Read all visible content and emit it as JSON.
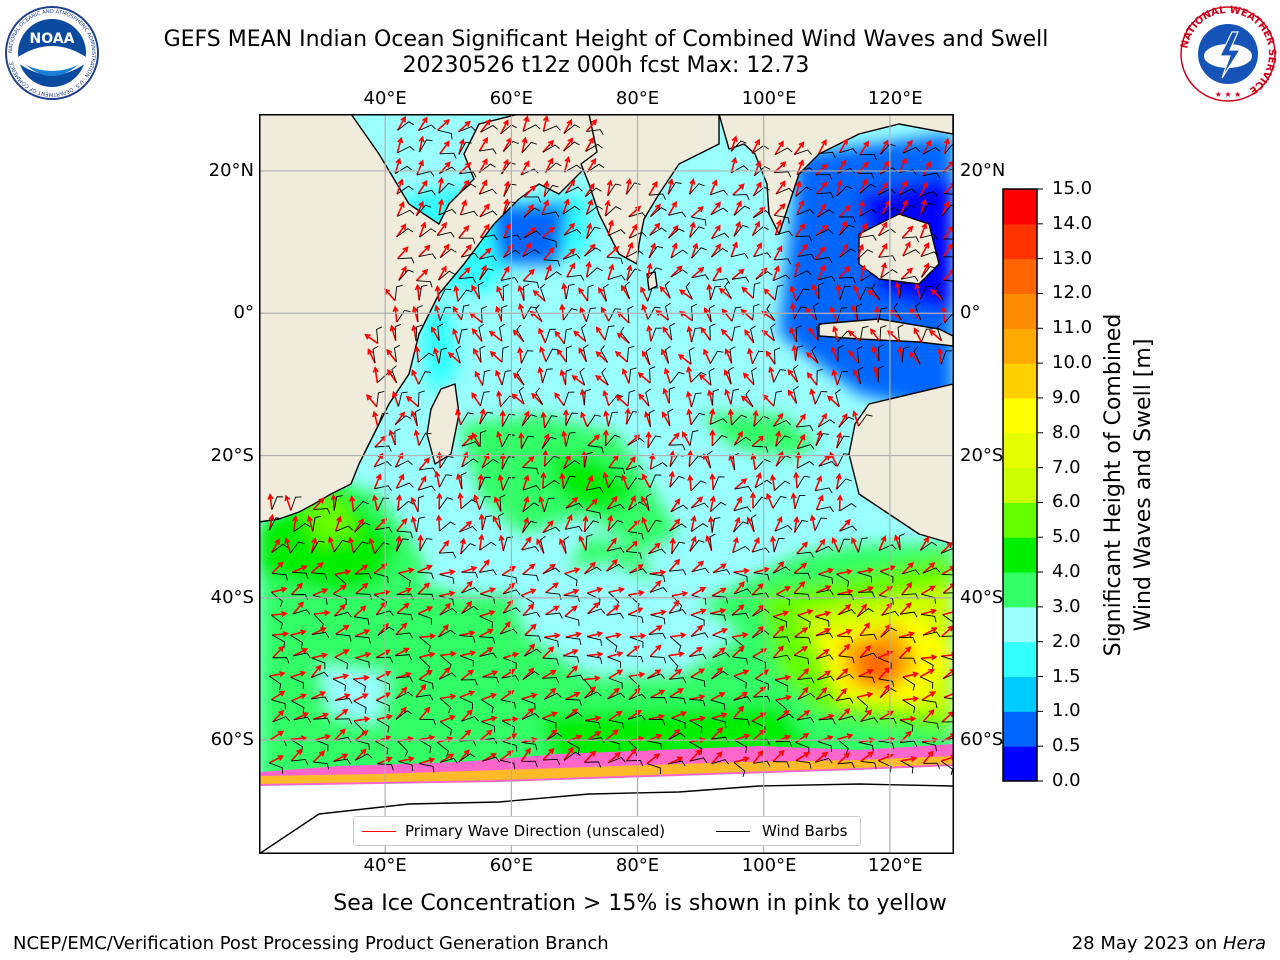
{
  "header": {
    "title_line1": "GEFS MEAN Indian Ocean Significant Height of Combined Wind Waves and Swell",
    "title_line2": "20230526 t12z 000h fcst   Max: 12.73"
  },
  "logos": {
    "left": "NOAA",
    "left_ring_text": "NATIONAL OCEANIC AND ATMOSPHERIC ADMINISTRATION · U.S. DEPARTMENT OF COMMERCE",
    "right_ring_text": "NATIONAL WEATHER SERVICE"
  },
  "map": {
    "lon_ticks": [
      "40°E",
      "60°E",
      "80°E",
      "100°E",
      "120°E"
    ],
    "lat_ticks": [
      "20°N",
      "0°",
      "20°S",
      "40°S",
      "60°S"
    ],
    "extent": {
      "lon_min": 20,
      "lon_max": 130,
      "lat_min": -76,
      "lat_max": 28
    },
    "colors": {
      "land": "#efecdb",
      "sea_ice_white": "#ffffff",
      "grid": "#b0b0b0",
      "arrows": "#ff0000",
      "barbs": "#000000"
    }
  },
  "colorbar": {
    "label_line1": "Significant Height of Combined",
    "label_line2": "Wind Waves and Swell [m]",
    "ticks": [
      "15.0",
      "14.0",
      "13.0",
      "12.0",
      "11.0",
      "10.0",
      "9.0",
      "8.0",
      "7.0",
      "6.0",
      "5.0",
      "4.0",
      "3.0",
      "2.0",
      "1.5",
      "1.0",
      "0.5",
      "0.0"
    ],
    "colors_bottom_to_top": [
      "#0000ff",
      "#0066ff",
      "#00ccff",
      "#33ffff",
      "#99ffff",
      "#33ff66",
      "#00ee00",
      "#66ff00",
      "#ccff00",
      "#e6ff00",
      "#ffff00",
      "#ffd000",
      "#ffaa00",
      "#ff8c00",
      "#ff6600",
      "#ff3300",
      "#ff0000"
    ]
  },
  "legend": {
    "item1": "Primary Wave Direction (unscaled)",
    "item2": "Wind Barbs"
  },
  "caption": "Sea Ice Concentration > 15% is shown in pink to yellow",
  "footer": {
    "left": "NCEP/EMC/Verification Post Processing Product Generation Branch",
    "right_prefix": "28 May 2023 on ",
    "right_host": "Hera"
  }
}
